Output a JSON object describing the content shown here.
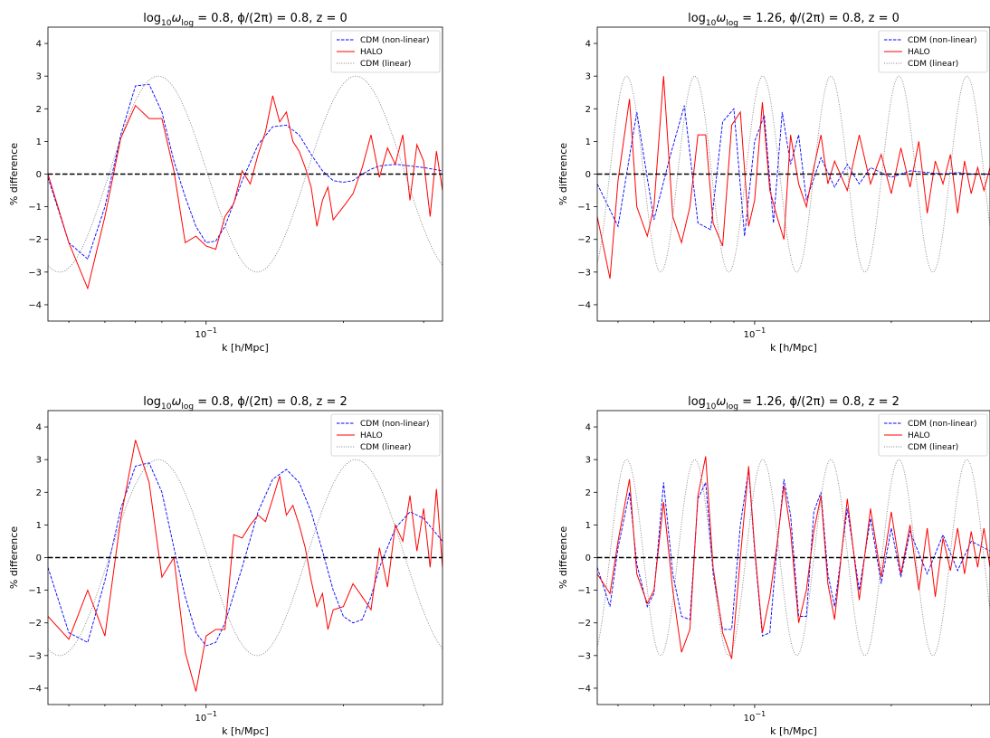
{
  "chart_data": [
    {
      "type": "line",
      "title": {
        "prefix": "log",
        "sub10": "10",
        "omega": "ω",
        "sublog": "log",
        "rest": " = 0.8, ϕ/(2π) = 0.8, z = 0"
      },
      "xlabel": "k [h/Mpc]",
      "ylabel": "% difference",
      "xscale": "log",
      "xlim": [
        0.045,
        0.33
      ],
      "ylim": [
        -4.5,
        4.5
      ],
      "yticks": [
        "−4",
        "−3",
        "−2",
        "−1",
        "0",
        "1",
        "2",
        "3",
        "4"
      ],
      "xtick_labels": [
        {
          "value": 0.1,
          "base": "10",
          "exp": "−1"
        }
      ],
      "hline": 0,
      "legend": {
        "position": "upper right",
        "entries": [
          "CDM (non-linear)",
          "HALO",
          "CDM (linear)"
        ]
      },
      "osc": {
        "amplitude": 3.0,
        "omega_log": 6.3,
        "phase": 5.03
      },
      "series": [
        {
          "name": "CDM (non-linear)",
          "style": "dashed",
          "color": "#0000ff",
          "x": [
            0.045,
            0.05,
            0.055,
            0.06,
            0.065,
            0.07,
            0.075,
            0.08,
            0.085,
            0.09,
            0.095,
            0.1,
            0.105,
            0.11,
            0.12,
            0.13,
            0.14,
            0.15,
            0.16,
            0.17,
            0.18,
            0.19,
            0.2,
            0.21,
            0.22,
            0.23,
            0.24,
            0.26,
            0.28,
            0.3,
            0.33
          ],
          "y": [
            -0.1,
            -2.1,
            -2.6,
            -1.0,
            1.2,
            2.7,
            2.75,
            1.9,
            0.4,
            -0.7,
            -1.6,
            -2.1,
            -2.05,
            -1.6,
            -0.2,
            0.9,
            1.45,
            1.5,
            1.2,
            0.6,
            0.1,
            -0.2,
            -0.25,
            -0.2,
            0.0,
            0.15,
            0.25,
            0.3,
            0.25,
            0.2,
            0.1
          ]
        },
        {
          "name": "HALO",
          "style": "solid",
          "color": "#ff0000",
          "x": [
            0.045,
            0.05,
            0.055,
            0.06,
            0.065,
            0.07,
            0.075,
            0.08,
            0.085,
            0.09,
            0.095,
            0.1,
            0.105,
            0.11,
            0.115,
            0.12,
            0.125,
            0.13,
            0.135,
            0.14,
            0.145,
            0.15,
            0.155,
            0.16,
            0.165,
            0.17,
            0.175,
            0.18,
            0.185,
            0.19,
            0.2,
            0.21,
            0.22,
            0.23,
            0.24,
            0.25,
            0.26,
            0.27,
            0.28,
            0.29,
            0.3,
            0.31,
            0.32,
            0.33
          ],
          "y": [
            0.0,
            -2.1,
            -3.5,
            -1.3,
            1.1,
            2.1,
            1.7,
            1.7,
            0.1,
            -2.1,
            -1.9,
            -2.2,
            -2.3,
            -1.3,
            -0.9,
            0.1,
            -0.3,
            0.6,
            1.3,
            2.4,
            1.6,
            1.9,
            1.0,
            0.7,
            0.2,
            -0.4,
            -1.6,
            -0.8,
            -0.4,
            -1.4,
            -1.0,
            -0.6,
            0.2,
            1.2,
            -0.1,
            0.8,
            0.3,
            1.2,
            -0.8,
            0.9,
            0.4,
            -1.3,
            0.7,
            -0.5
          ]
        },
        {
          "name": "CDM (linear)",
          "style": "dotted",
          "color": "#808080",
          "analytic": true
        }
      ]
    },
    {
      "type": "line",
      "title": {
        "prefix": "log",
        "sub10": "10",
        "omega": "ω",
        "sublog": "log",
        "rest": " = 1.26, ϕ/(2π) = 0.8, z = 0"
      },
      "xlabel": "k [h/Mpc]",
      "ylabel": "% difference",
      "xscale": "log",
      "xlim": [
        0.045,
        0.33
      ],
      "ylim": [
        -4.5,
        4.5
      ],
      "yticks": [
        "−4",
        "−3",
        "−2",
        "−1",
        "0",
        "1",
        "2",
        "3",
        "4"
      ],
      "xtick_labels": [
        {
          "value": 0.1,
          "base": "10",
          "exp": "−1"
        }
      ],
      "hline": 0,
      "legend": {
        "position": "upper right",
        "entries": [
          "CDM (non-linear)",
          "HALO",
          "CDM (linear)"
        ]
      },
      "osc": {
        "amplitude": 3.0,
        "omega_log": 18.2,
        "phase": 5.03
      },
      "series": [
        {
          "name": "CDM (non-linear)",
          "style": "dashed",
          "color": "#0000ff",
          "x": [
            0.045,
            0.05,
            0.055,
            0.06,
            0.065,
            0.07,
            0.075,
            0.08,
            0.085,
            0.09,
            0.095,
            0.1,
            0.105,
            0.11,
            0.115,
            0.12,
            0.125,
            0.13,
            0.14,
            0.15,
            0.16,
            0.17,
            0.18,
            0.2,
            0.22,
            0.24,
            0.26,
            0.28,
            0.3,
            0.33
          ],
          "y": [
            -0.3,
            -1.6,
            1.9,
            -1.4,
            0.5,
            2.1,
            -1.5,
            -1.7,
            1.6,
            2.0,
            -1.9,
            1.0,
            1.8,
            -1.5,
            1.9,
            0.3,
            1.2,
            -0.8,
            0.5,
            -0.4,
            0.3,
            -0.3,
            0.2,
            -0.1,
            0.1,
            0.05,
            0.0,
            0.05,
            0.0,
            0.0
          ]
        },
        {
          "name": "HALO",
          "style": "solid",
          "color": "#ff0000",
          "x": [
            0.045,
            0.048,
            0.05,
            0.053,
            0.055,
            0.058,
            0.06,
            0.063,
            0.066,
            0.069,
            0.072,
            0.075,
            0.078,
            0.081,
            0.085,
            0.089,
            0.093,
            0.097,
            0.1,
            0.104,
            0.108,
            0.112,
            0.116,
            0.12,
            0.125,
            0.13,
            0.135,
            0.14,
            0.145,
            0.15,
            0.16,
            0.17,
            0.18,
            0.19,
            0.2,
            0.21,
            0.22,
            0.23,
            0.24,
            0.25,
            0.26,
            0.27,
            0.28,
            0.29,
            0.3,
            0.31,
            0.32,
            0.33
          ],
          "y": [
            -1.3,
            -3.2,
            -0.2,
            2.3,
            -1.0,
            -1.9,
            -1.0,
            3.0,
            -1.3,
            -2.1,
            -1.0,
            1.2,
            1.2,
            -1.5,
            -2.2,
            1.5,
            1.9,
            -1.6,
            -0.8,
            2.2,
            -0.5,
            -1.3,
            -2.0,
            1.2,
            -0.3,
            -1.0,
            0.2,
            1.2,
            -0.3,
            0.4,
            -0.5,
            1.2,
            -0.3,
            0.6,
            -0.6,
            0.8,
            -0.4,
            1.0,
            -1.2,
            0.4,
            -0.3,
            0.6,
            -1.2,
            0.4,
            -0.6,
            0.2,
            -0.5,
            0.2
          ]
        },
        {
          "name": "CDM (linear)",
          "style": "dotted",
          "color": "#808080",
          "analytic": true
        }
      ]
    },
    {
      "type": "line",
      "title": {
        "prefix": "log",
        "sub10": "10",
        "omega": "ω",
        "sublog": "log",
        "rest": " = 0.8, ϕ/(2π) = 0.8, z = 2"
      },
      "xlabel": "k [h/Mpc]",
      "ylabel": "% difference",
      "xscale": "log",
      "xlim": [
        0.045,
        0.33
      ],
      "ylim": [
        -4.5,
        4.5
      ],
      "yticks": [
        "−4",
        "−3",
        "−2",
        "−1",
        "0",
        "1",
        "2",
        "3",
        "4"
      ],
      "xtick_labels": [
        {
          "value": 0.1,
          "base": "10",
          "exp": "−1"
        }
      ],
      "hline": 0,
      "legend": {
        "position": "upper right",
        "entries": [
          "CDM (non-linear)",
          "HALO",
          "CDM (linear)"
        ]
      },
      "osc": {
        "amplitude": 3.0,
        "omega_log": 6.3,
        "phase": 5.03
      },
      "series": [
        {
          "name": "CDM (non-linear)",
          "style": "dashed",
          "color": "#0000ff",
          "x": [
            0.045,
            0.05,
            0.055,
            0.06,
            0.065,
            0.07,
            0.075,
            0.08,
            0.085,
            0.09,
            0.095,
            0.1,
            0.105,
            0.11,
            0.12,
            0.13,
            0.14,
            0.15,
            0.16,
            0.17,
            0.18,
            0.19,
            0.2,
            0.21,
            0.22,
            0.23,
            0.24,
            0.26,
            0.28,
            0.3,
            0.33
          ],
          "y": [
            -0.3,
            -2.3,
            -2.6,
            -0.7,
            1.5,
            2.8,
            2.9,
            2.0,
            0.3,
            -1.2,
            -2.3,
            -2.7,
            -2.6,
            -2.0,
            -0.3,
            1.4,
            2.4,
            2.7,
            2.3,
            1.4,
            0.2,
            -1.0,
            -1.8,
            -2.0,
            -1.9,
            -1.2,
            -0.3,
            0.9,
            1.4,
            1.2,
            0.5
          ]
        },
        {
          "name": "HALO",
          "style": "solid",
          "color": "#ff0000",
          "x": [
            0.045,
            0.05,
            0.055,
            0.06,
            0.065,
            0.07,
            0.075,
            0.08,
            0.085,
            0.09,
            0.095,
            0.1,
            0.105,
            0.11,
            0.115,
            0.12,
            0.125,
            0.13,
            0.135,
            0.14,
            0.145,
            0.15,
            0.155,
            0.16,
            0.165,
            0.17,
            0.175,
            0.18,
            0.185,
            0.19,
            0.2,
            0.21,
            0.22,
            0.23,
            0.24,
            0.25,
            0.26,
            0.27,
            0.28,
            0.29,
            0.3,
            0.31,
            0.32,
            0.33
          ],
          "y": [
            -1.8,
            -2.5,
            -1.0,
            -2.4,
            1.2,
            3.6,
            2.3,
            -0.6,
            0.0,
            -2.9,
            -4.1,
            -2.4,
            -2.2,
            -2.2,
            0.7,
            0.6,
            1.0,
            1.3,
            1.1,
            1.8,
            2.5,
            1.3,
            1.6,
            1.0,
            0.3,
            -0.7,
            -1.5,
            -1.1,
            -2.2,
            -1.6,
            -1.5,
            -0.8,
            -1.2,
            -1.6,
            0.3,
            -0.9,
            1.0,
            0.5,
            1.9,
            0.2,
            1.5,
            -0.3,
            2.1,
            -0.3
          ]
        },
        {
          "name": "CDM (linear)",
          "style": "dotted",
          "color": "#808080",
          "analytic": true
        }
      ]
    },
    {
      "type": "line",
      "title": {
        "prefix": "log",
        "sub10": "10",
        "omega": "ω",
        "sublog": "log",
        "rest": " = 1.26, ϕ/(2π) = 0.8, z = 2"
      },
      "xlabel": "k [h/Mpc]",
      "ylabel": "% difference",
      "xscale": "log",
      "xlim": [
        0.045,
        0.33
      ],
      "ylim": [
        -4.5,
        4.5
      ],
      "yticks": [
        "−4",
        "−3",
        "−2",
        "−1",
        "0",
        "1",
        "2",
        "3",
        "4"
      ],
      "xtick_labels": [
        {
          "value": 0.1,
          "base": "10",
          "exp": "−1"
        }
      ],
      "hline": 0,
      "legend": {
        "position": "upper right",
        "entries": [
          "CDM (non-linear)",
          "HALO",
          "CDM (linear)"
        ]
      },
      "osc": {
        "amplitude": 3.0,
        "omega_log": 18.2,
        "phase": 5.03
      },
      "series": [
        {
          "name": "CDM (non-linear)",
          "style": "dashed",
          "color": "#0000ff",
          "x": [
            0.045,
            0.048,
            0.05,
            0.053,
            0.055,
            0.058,
            0.06,
            0.063,
            0.066,
            0.069,
            0.072,
            0.075,
            0.078,
            0.081,
            0.085,
            0.089,
            0.093,
            0.097,
            0.1,
            0.104,
            0.108,
            0.112,
            0.116,
            0.12,
            0.125,
            0.13,
            0.135,
            0.14,
            0.145,
            0.15,
            0.16,
            0.17,
            0.18,
            0.19,
            0.2,
            0.21,
            0.22,
            0.24,
            0.26,
            0.28,
            0.3,
            0.33
          ],
          "y": [
            -0.3,
            -1.5,
            0.3,
            2.0,
            -0.2,
            -1.5,
            -1.1,
            2.3,
            -0.5,
            -1.8,
            -1.9,
            1.8,
            2.3,
            -0.5,
            -2.2,
            -2.2,
            1.0,
            2.7,
            0.2,
            -2.4,
            -2.3,
            0.3,
            2.4,
            1.3,
            -1.8,
            -1.8,
            1.4,
            2.0,
            -0.5,
            -1.5,
            1.5,
            -1.0,
            1.2,
            -0.8,
            0.9,
            -0.6,
            0.8,
            -0.5,
            0.7,
            -0.4,
            0.5,
            0.2
          ]
        },
        {
          "name": "HALO",
          "style": "solid",
          "color": "#ff0000",
          "x": [
            0.045,
            0.048,
            0.05,
            0.053,
            0.055,
            0.058,
            0.06,
            0.063,
            0.066,
            0.069,
            0.072,
            0.075,
            0.078,
            0.081,
            0.085,
            0.089,
            0.093,
            0.097,
            0.1,
            0.104,
            0.108,
            0.112,
            0.116,
            0.12,
            0.125,
            0.13,
            0.135,
            0.14,
            0.145,
            0.15,
            0.16,
            0.17,
            0.18,
            0.19,
            0.2,
            0.21,
            0.22,
            0.23,
            0.24,
            0.25,
            0.26,
            0.27,
            0.28,
            0.29,
            0.3,
            0.31,
            0.32,
            0.33
          ],
          "y": [
            -0.5,
            -1.1,
            0.5,
            2.4,
            -0.5,
            -1.4,
            -1.0,
            1.7,
            -1.0,
            -2.9,
            -2.2,
            1.9,
            3.1,
            -0.3,
            -2.3,
            -3.1,
            0.0,
            2.8,
            0.3,
            -2.3,
            -1.2,
            0.4,
            2.2,
            0.8,
            -2.0,
            -1.0,
            0.8,
            1.9,
            -0.8,
            -1.9,
            1.8,
            -1.3,
            1.5,
            -0.6,
            1.4,
            -0.5,
            1.0,
            -1.0,
            0.9,
            -1.2,
            0.6,
            -0.4,
            0.9,
            -0.5,
            0.8,
            -0.3,
            0.9,
            -0.3
          ]
        },
        {
          "name": "CDM (linear)",
          "style": "dotted",
          "color": "#808080",
          "analytic": true
        }
      ]
    }
  ]
}
